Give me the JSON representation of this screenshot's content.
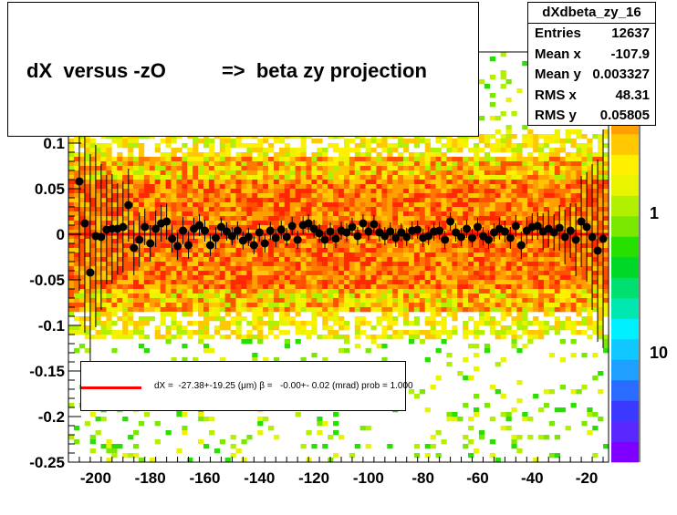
{
  "chart_data": {
    "type": "heatmap",
    "title": "dX  versus -zO          =>  beta zy projection",
    "xlim": [
      -210,
      -12
    ],
    "ylim": [
      -0.25,
      0.2
    ],
    "x_ticks": [
      -200,
      -180,
      -160,
      -140,
      -120,
      -100,
      -80,
      -60,
      -40,
      -20
    ],
    "y_ticks": [
      -0.25,
      -0.2,
      -0.15,
      -0.1,
      -0.05,
      0,
      0.05,
      0.1
    ],
    "y_tick_labels": [
      "-0.25",
      "-0.2",
      "-0.15",
      "-0.1",
      "-0.05",
      "0",
      "0.05",
      "0.1"
    ],
    "color_scale": {
      "log": true,
      "labels": [
        "1",
        "10"
      ],
      "colors": [
        "#7f00ff",
        "#5a28ff",
        "#3a3aff",
        "#2a6cff",
        "#1f9fff",
        "#10c8ff",
        "#00f0ff",
        "#00e8b0",
        "#00e070",
        "#00d828",
        "#28e000",
        "#7ae800",
        "#b0f000",
        "#e8f400",
        "#fff000",
        "#ffc800",
        "#ffa000",
        "#ff7800",
        "#ff5000",
        "#ff2800"
      ]
    },
    "stats": {
      "name": "dXdbeta_zy_16",
      "rows": [
        {
          "label": "Entries",
          "value": "12637"
        },
        {
          "label": "Mean x",
          "value": "-107.9"
        },
        {
          "label": "Mean y",
          "value": "0.003327"
        },
        {
          "label": "RMS x",
          "value": "48.31"
        },
        {
          "label": "RMS y",
          "value": "0.05805"
        }
      ]
    },
    "fit": {
      "text": "dX =  -27.38+-19.25 (μm) β =   -0.00+- 0.02 (mrad) prob = 1.000",
      "line_color": "#ff0000",
      "y_value": 0
    },
    "profile_points": [
      {
        "x": -206,
        "y": 0.058,
        "err": 0.12
      },
      {
        "x": -204,
        "y": 0.012,
        "err": 0.12
      },
      {
        "x": -202,
        "y": -0.042,
        "err": 0.13
      },
      {
        "x": -200,
        "y": -0.002,
        "err": 0.1
      },
      {
        "x": -198,
        "y": -0.003,
        "err": 0.08
      },
      {
        "x": -196,
        "y": 0.005,
        "err": 0.06
      },
      {
        "x": -194,
        "y": 0.006,
        "err": 0.06
      },
      {
        "x": -192,
        "y": 0.006,
        "err": 0.05
      },
      {
        "x": -190,
        "y": 0.008,
        "err": 0.05
      },
      {
        "x": -188,
        "y": 0.032,
        "err": 0.04
      },
      {
        "x": -186,
        "y": -0.015,
        "err": 0.03
      },
      {
        "x": -184,
        "y": -0.006,
        "err": 0.03
      },
      {
        "x": -182,
        "y": 0.008,
        "err": 0.02
      },
      {
        "x": -180,
        "y": -0.01,
        "err": 0.02
      },
      {
        "x": -178,
        "y": 0.006,
        "err": 0.02
      },
      {
        "x": -176,
        "y": 0.012,
        "err": 0.02
      },
      {
        "x": -174,
        "y": 0.014,
        "err": 0.02
      },
      {
        "x": -172,
        "y": -0.005,
        "err": 0.015
      },
      {
        "x": -170,
        "y": -0.013,
        "err": 0.015
      },
      {
        "x": -168,
        "y": 0.004,
        "err": 0.015
      },
      {
        "x": -166,
        "y": -0.012,
        "err": 0.015
      },
      {
        "x": -164,
        "y": 0.006,
        "err": 0.012
      },
      {
        "x": -162,
        "y": 0.01,
        "err": 0.012
      },
      {
        "x": -160,
        "y": 0.004,
        "err": 0.012
      },
      {
        "x": -158,
        "y": -0.012,
        "err": 0.012
      },
      {
        "x": -156,
        "y": -0.004,
        "err": 0.012
      },
      {
        "x": -154,
        "y": 0.008,
        "err": 0.01
      },
      {
        "x": -152,
        "y": 0.003,
        "err": 0.01
      },
      {
        "x": -150,
        "y": -0.002,
        "err": 0.01
      },
      {
        "x": -148,
        "y": 0.004,
        "err": 0.01
      },
      {
        "x": -146,
        "y": -0.007,
        "err": 0.01
      },
      {
        "x": -144,
        "y": -0.003,
        "err": 0.01
      },
      {
        "x": -142,
        "y": -0.012,
        "err": 0.01
      },
      {
        "x": -140,
        "y": 0.002,
        "err": 0.01
      },
      {
        "x": -138,
        "y": -0.01,
        "err": 0.01
      },
      {
        "x": -136,
        "y": 0.004,
        "err": 0.01
      },
      {
        "x": -134,
        "y": -0.004,
        "err": 0.01
      },
      {
        "x": -132,
        "y": 0.005,
        "err": 0.01
      },
      {
        "x": -130,
        "y": -0.003,
        "err": 0.01
      },
      {
        "x": -128,
        "y": 0.009,
        "err": 0.01
      },
      {
        "x": -126,
        "y": -0.006,
        "err": 0.01
      },
      {
        "x": -124,
        "y": 0.01,
        "err": 0.01
      },
      {
        "x": -122,
        "y": 0.012,
        "err": 0.01
      },
      {
        "x": -120,
        "y": 0.006,
        "err": 0.01
      },
      {
        "x": -118,
        "y": 0.001,
        "err": 0.01
      },
      {
        "x": -116,
        "y": -0.006,
        "err": 0.01
      },
      {
        "x": -114,
        "y": 0.003,
        "err": 0.01
      },
      {
        "x": -112,
        "y": -0.005,
        "err": 0.01
      },
      {
        "x": -110,
        "y": 0.004,
        "err": 0.01
      },
      {
        "x": -108,
        "y": 0.002,
        "err": 0.01
      },
      {
        "x": -106,
        "y": 0.008,
        "err": 0.01
      },
      {
        "x": -104,
        "y": -0.002,
        "err": 0.01
      },
      {
        "x": -102,
        "y": 0.012,
        "err": 0.01
      },
      {
        "x": -100,
        "y": 0.003,
        "err": 0.01
      },
      {
        "x": -98,
        "y": 0.011,
        "err": 0.01
      },
      {
        "x": -96,
        "y": 0.002,
        "err": 0.01
      },
      {
        "x": -94,
        "y": -0.002,
        "err": 0.01
      },
      {
        "x": -92,
        "y": 0.003,
        "err": 0.01
      },
      {
        "x": -90,
        "y": -0.004,
        "err": 0.01
      },
      {
        "x": -88,
        "y": 0.002,
        "err": 0.01
      },
      {
        "x": -86,
        "y": -0.003,
        "err": 0.01
      },
      {
        "x": -84,
        "y": 0.004,
        "err": 0.01
      },
      {
        "x": -82,
        "y": 0.005,
        "err": 0.01
      },
      {
        "x": -80,
        "y": -0.004,
        "err": 0.01
      },
      {
        "x": -78,
        "y": -0.002,
        "err": 0.01
      },
      {
        "x": -76,
        "y": 0.003,
        "err": 0.01
      },
      {
        "x": -74,
        "y": 0.004,
        "err": 0.01
      },
      {
        "x": -72,
        "y": -0.006,
        "err": 0.01
      },
      {
        "x": -70,
        "y": 0.014,
        "err": 0.01
      },
      {
        "x": -68,
        "y": 0.002,
        "err": 0.01
      },
      {
        "x": -66,
        "y": -0.003,
        "err": 0.01
      },
      {
        "x": -64,
        "y": 0.006,
        "err": 0.01
      },
      {
        "x": -62,
        "y": -0.004,
        "err": 0.01
      },
      {
        "x": -60,
        "y": 0.008,
        "err": 0.01
      },
      {
        "x": -58,
        "y": -0.002,
        "err": 0.01
      },
      {
        "x": -56,
        "y": -0.006,
        "err": 0.01
      },
      {
        "x": -54,
        "y": 0.002,
        "err": 0.01
      },
      {
        "x": -52,
        "y": 0.006,
        "err": 0.012
      },
      {
        "x": -50,
        "y": 0.003,
        "err": 0.012
      },
      {
        "x": -48,
        "y": -0.004,
        "err": 0.012
      },
      {
        "x": -46,
        "y": 0.009,
        "err": 0.012
      },
      {
        "x": -44,
        "y": -0.012,
        "err": 0.015
      },
      {
        "x": -42,
        "y": 0.004,
        "err": 0.015
      },
      {
        "x": -40,
        "y": 0.008,
        "err": 0.015
      },
      {
        "x": -38,
        "y": 0.009,
        "err": 0.015
      },
      {
        "x": -36,
        "y": 0.003,
        "err": 0.02
      },
      {
        "x": -34,
        "y": 0.006,
        "err": 0.02
      },
      {
        "x": -32,
        "y": 0.002,
        "err": 0.02
      },
      {
        "x": -30,
        "y": 0.007,
        "err": 0.025
      },
      {
        "x": -28,
        "y": -0.003,
        "err": 0.03
      },
      {
        "x": -26,
        "y": 0.004,
        "err": 0.03
      },
      {
        "x": -24,
        "y": -0.006,
        "err": 0.04
      },
      {
        "x": -22,
        "y": 0.014,
        "err": 0.05
      },
      {
        "x": -20,
        "y": 0.008,
        "err": 0.06
      },
      {
        "x": -18,
        "y": -0.003,
        "err": 0.08
      },
      {
        "x": -16,
        "y": -0.018,
        "err": 0.1
      },
      {
        "x": -14,
        "y": -0.005,
        "err": 0.12
      }
    ]
  }
}
